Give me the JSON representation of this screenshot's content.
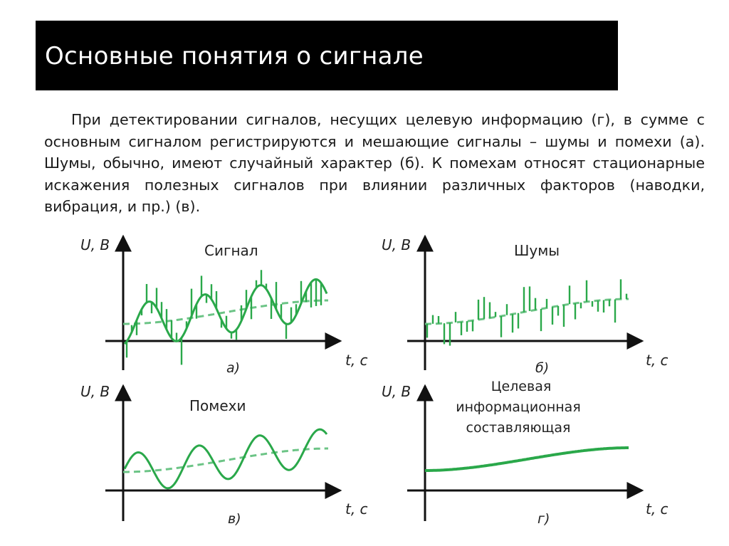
{
  "slide": {
    "title": "Основные понятия о сигнале",
    "paragraph": "При детектировании сигналов, несущих целевую информацию (г), в сумме с основным сигналом регистрируются и мешающие сигналы – шумы и помехи (а). Шумы, обычно, имеют случайный характер (б). К помехам относят стационарные искажения полезных сигналов при влиянии различных факторов (наводки, вибрация, и пр.) (в)."
  },
  "colors": {
    "curve": "#2aa84a",
    "trend": "#6cc486",
    "axis": "#111111",
    "title_bg": "#000000"
  },
  "panels": [
    {
      "id": "a",
      "title": "Сигнал",
      "y_axis_label": "U, В",
      "x_axis_label": "t, с",
      "caption": "а)"
    },
    {
      "id": "b",
      "title": "Шумы",
      "y_axis_label": "U, В",
      "x_axis_label": "t, с",
      "caption": "б)"
    },
    {
      "id": "v",
      "title": "Помехи",
      "y_axis_label": "U, В",
      "x_axis_label": "t, с",
      "caption": "в)"
    },
    {
      "id": "g",
      "title_lines": [
        "Целевая",
        "информационная",
        "составляющая"
      ],
      "y_axis_label": "U, В",
      "x_axis_label": "t, с",
      "caption": "г)"
    }
  ]
}
